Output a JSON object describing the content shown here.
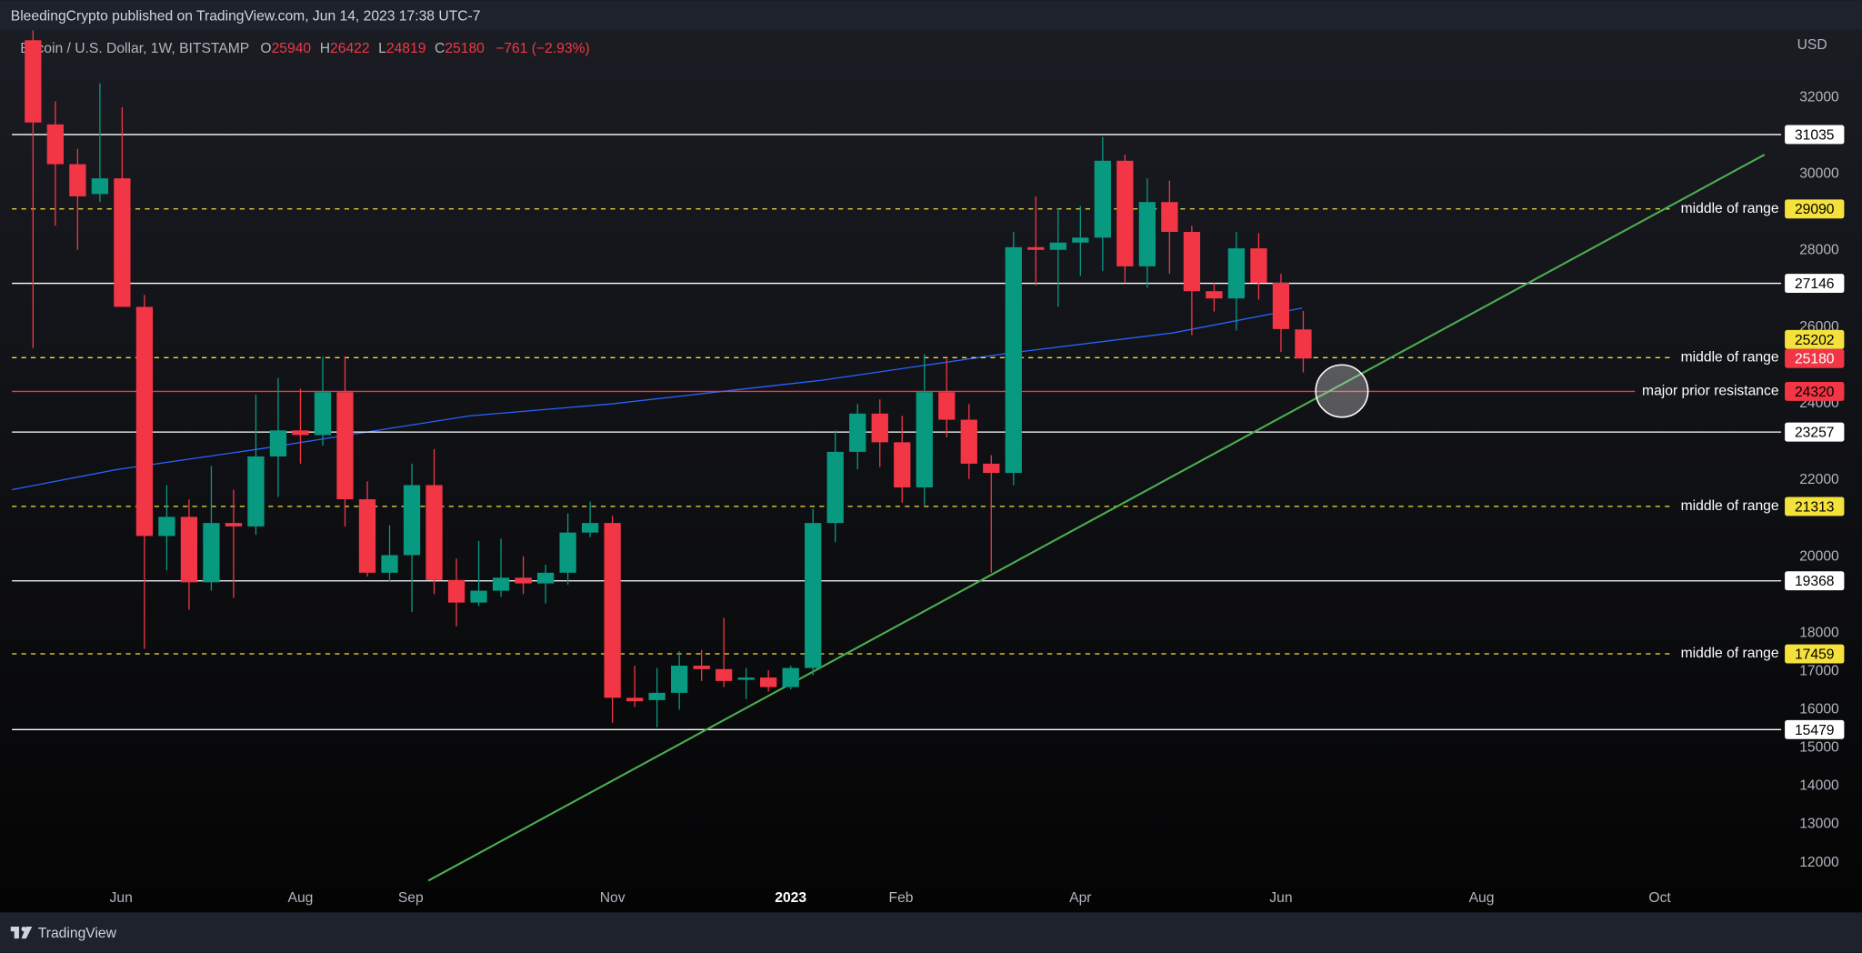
{
  "header": {
    "publisher": "BleedingCrypto published on TradingView.com, Jun 14, 2023 17:38 UTC-7",
    "symbol": "Bitcoin / U.S. Dollar, 1W, BITSTAMP",
    "open_label": "O",
    "high_label": "H",
    "low_label": "L",
    "close_label": "C",
    "change": "−761 (−2.93%)"
  },
  "footer": {
    "brand": "TradingView"
  },
  "chart_data": {
    "type": "candlestick",
    "currency": "USD",
    "up_color": "#089981",
    "down_color": "#f23645",
    "categories": [
      null,
      null,
      null,
      null,
      null,
      null,
      null,
      null,
      null,
      null,
      null,
      null,
      null,
      null,
      null,
      null,
      null,
      null,
      null,
      null,
      null,
      null,
      null,
      null,
      null,
      null,
      null,
      null,
      null,
      null,
      null,
      null,
      null,
      null,
      null,
      null,
      null,
      null,
      null,
      null,
      null,
      null,
      null,
      null,
      null,
      null,
      null,
      null,
      null,
      null,
      null,
      null,
      null,
      null,
      null,
      null,
      null,
      null
    ],
    "open": [
      33500,
      31300,
      30260,
      29480,
      29890,
      26530,
      20540,
      21040,
      19330,
      20880,
      20790,
      22620,
      23300,
      23180,
      24300,
      21500,
      19580,
      20040,
      21870,
      19390,
      18800,
      19110,
      19450,
      19300,
      19580,
      20630,
      20880,
      16310,
      16250,
      16440,
      17150,
      17060,
      16780,
      16840,
      16590,
      17090,
      20880,
      22740,
      23740,
      22990,
      21810,
      24300,
      23580,
      22430,
      22190,
      28090,
      28020,
      28210,
      28340,
      30350,
      27590,
      29270,
      28490,
      26940,
      26750,
      28060,
      27160,
      25940
    ],
    "high": [
      33760,
      31900,
      30660,
      32370,
      31750,
      26840,
      21870,
      21500,
      22370,
      21750,
      24230,
      24670,
      24390,
      25230,
      25230,
      21970,
      20820,
      22430,
      22810,
      19950,
      20410,
      20470,
      20010,
      19790,
      21130,
      21440,
      21070,
      17150,
      17090,
      17530,
      17560,
      18400,
      17090,
      17030,
      17150,
      21250,
      23300,
      23990,
      24110,
      23680,
      25290,
      25170,
      23990,
      22650,
      28490,
      29420,
      29110,
      29170,
      30970,
      30510,
      29890,
      29830,
      28650,
      27150,
      28490,
      28460,
      27400,
      26422
    ],
    "low": [
      25450,
      28650,
      28020,
      29270,
      26530,
      17590,
      19640,
      18610,
      19110,
      18920,
      20570,
      21560,
      22430,
      22900,
      20790,
      19480,
      19360,
      18550,
      19020,
      18180,
      18710,
      18950,
      19020,
      18770,
      19270,
      20510,
      15660,
      16070,
      15540,
      16000,
      16750,
      16590,
      16280,
      16470,
      16530,
      16900,
      20380,
      22280,
      22340,
      21410,
      21350,
      23120,
      22030,
      19580,
      21870,
      27090,
      26530,
      27340,
      27470,
      27150,
      27030,
      27400,
      25790,
      26410,
      25910,
      26720,
      25350,
      24819
    ],
    "close": [
      31350,
      30260,
      29420,
      29890,
      26530,
      20540,
      21040,
      19330,
      20880,
      20790,
      22620,
      23300,
      23180,
      24300,
      21500,
      19580,
      20040,
      21870,
      19390,
      18800,
      19110,
      19450,
      19300,
      19580,
      20630,
      20880,
      16310,
      16220,
      16440,
      17150,
      17060,
      16750,
      16840,
      16590,
      17090,
      20880,
      22740,
      23740,
      22990,
      21810,
      24300,
      23580,
      22430,
      22190,
      28090,
      28020,
      28210,
      28340,
      30350,
      27590,
      29270,
      28490,
      26940,
      26750,
      28060,
      27160,
      25950,
      25180
    ],
    "xlim": [
      -0.95,
      78.45
    ],
    "ylim": [
      10700,
      33770
    ],
    "xticks": [
      {
        "value": 3.95,
        "label": "Jun"
      },
      {
        "value": 12.0,
        "label": "Aug"
      },
      {
        "value": 16.95,
        "label": "Sep"
      },
      {
        "value": 26.0,
        "label": "Nov"
      },
      {
        "value": 34.0,
        "label": "2023"
      },
      {
        "value": 38.95,
        "label": "Feb"
      },
      {
        "value": 47.0,
        "label": "Apr"
      },
      {
        "value": 56.0,
        "label": "Jun"
      },
      {
        "value": 65.0,
        "label": "Aug"
      },
      {
        "value": 73.0,
        "label": "Oct"
      }
    ],
    "yticks": [
      12000,
      13000,
      14000,
      15000,
      16000,
      17000,
      18000,
      20000,
      22000,
      24000,
      26000,
      28000,
      30000,
      32000
    ],
    "levels": [
      {
        "value": 31035,
        "style": "solid",
        "color": "#ffffff"
      },
      {
        "value": 29090,
        "style": "dashed",
        "color": "#f5e13c",
        "text": "middle of range"
      },
      {
        "value": 27146,
        "style": "solid",
        "color": "#ffffff"
      },
      {
        "value": 25202,
        "style": "dashed",
        "color": "#f5e13c",
        "text": "middle of range"
      },
      {
        "value": 24320,
        "style": "solid",
        "color": "#f23645",
        "text": "major prior resistance"
      },
      {
        "value": 23257,
        "style": "solid",
        "color": "#ffffff"
      },
      {
        "value": 21313,
        "style": "dashed",
        "color": "#f5e13c",
        "text": "middle of range"
      },
      {
        "value": 19368,
        "style": "solid",
        "color": "#ffffff"
      },
      {
        "value": 17459,
        "style": "dashed",
        "color": "#f5e13c",
        "text": "middle of range"
      },
      {
        "value": 15479,
        "style": "solid",
        "color": "#ffffff"
      }
    ],
    "trendline": {
      "color": "#4caf50",
      "x": [
        17.74,
        77.7
      ],
      "values": [
        11530,
        30510
      ]
    },
    "moving_average": {
      "color": "#2962ff",
      "x": [
        -0.95,
        3.79,
        10.1,
        19.58,
        25.9,
        35.37,
        43.79,
        51.16,
        56.95
      ],
      "values": [
        21750,
        22280,
        22810,
        23680,
        23990,
        24610,
        25320,
        25850,
        26500
      ]
    }
  }
}
